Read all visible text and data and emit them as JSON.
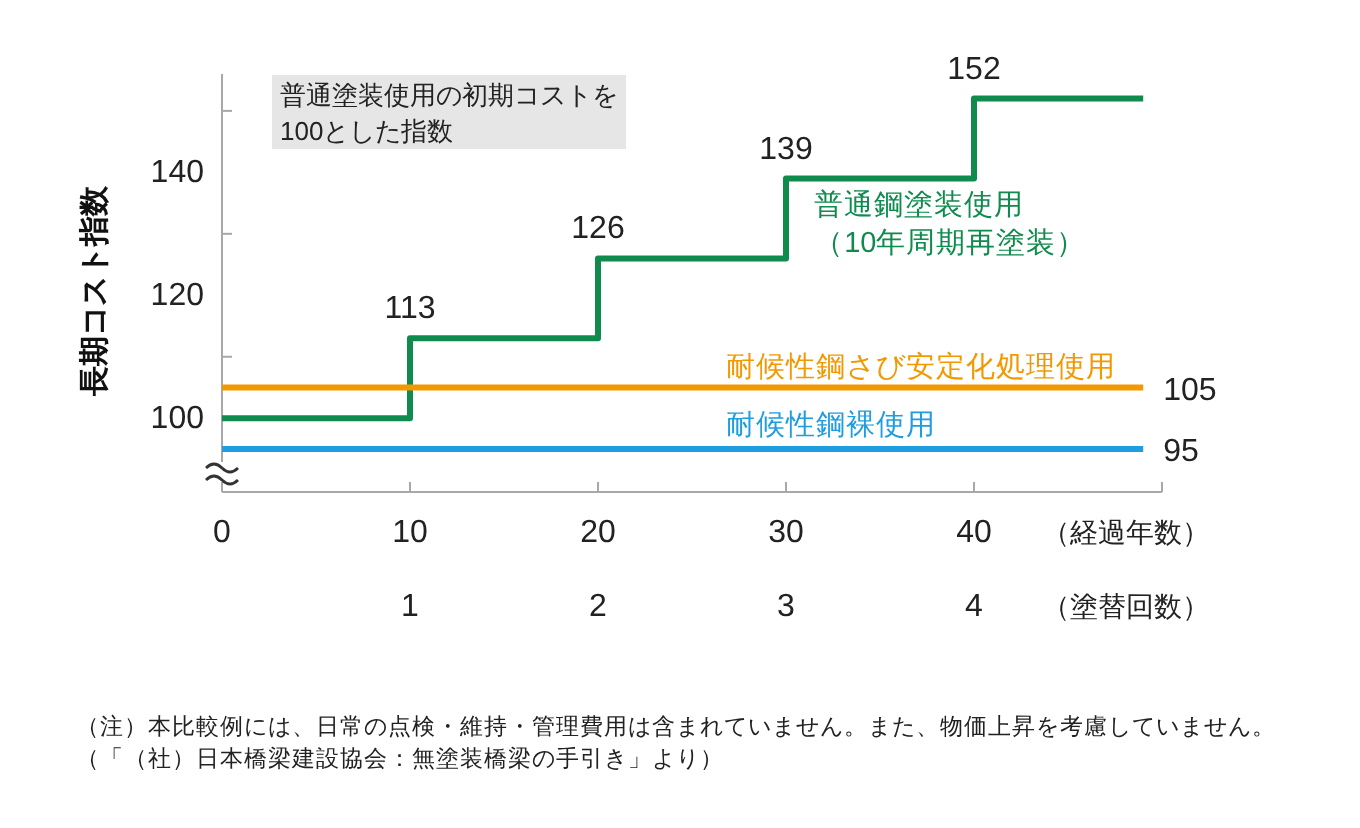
{
  "chart_data": {
    "type": "step",
    "ylabel": "長期コスト指数",
    "xlabel": "（経過年数）",
    "x2label": "（塗替回数）",
    "annotations": [
      "普通塗装使用の初期コストを100とした指数",
      "（注）本比較例には、日常の点検・維持・管理費用は含まれていません。また、物価上昇を考慮していません。",
      "（「（社）日本橋梁建設協会：無塗装橋梁の手引き」より）"
    ],
    "xlim": [
      0,
      50
    ],
    "xticks": [
      0,
      10,
      20,
      30,
      40,
      {
        "value": 50,
        "label": null
      }
    ],
    "x2lim": [
      0,
      5
    ],
    "x2ticks": [
      1,
      2,
      3,
      4
    ],
    "ylim": [
      88,
      156
    ],
    "yticks": [
      100,
      {
        "value": 110,
        "label": null
      },
      120,
      {
        "value": 130,
        "label": null
      },
      140,
      {
        "value": 150,
        "label": null
      }
    ],
    "series": [
      {
        "name": "普通鋼塗装使用（10年周期再塗装）",
        "color": "#0f8b4e",
        "x": [
          0,
          10,
          20,
          30,
          40,
          49
        ],
        "values": [
          100,
          113,
          126,
          139,
          152,
          152
        ],
        "value_labels": [
          null,
          "113",
          "126",
          "139",
          "152",
          null
        ]
      },
      {
        "name": "耐候性鋼さび安定化処理使用",
        "color": "#f39800",
        "type": "line",
        "x": [
          0,
          49
        ],
        "values": [
          105,
          105
        ],
        "value_labels": [
          null,
          "105"
        ]
      },
      {
        "name": "耐候性鋼裸使用",
        "color": "#1e9de0",
        "type": "line",
        "x": [
          0,
          49
        ],
        "values": [
          95,
          95
        ],
        "value_labels": [
          null,
          "95"
        ]
      }
    ]
  }
}
